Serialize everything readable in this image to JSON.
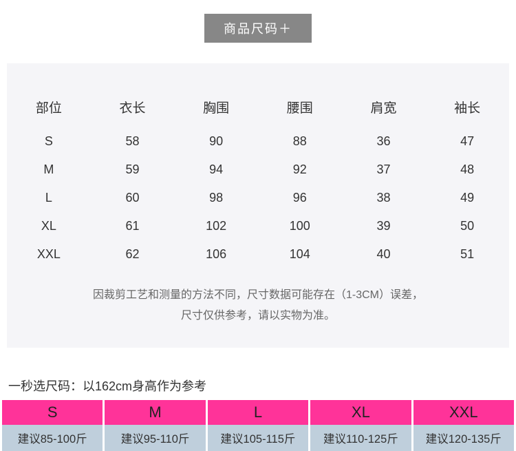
{
  "tab": {
    "label": "商品尺码＋",
    "bg_color": "#878787",
    "text_color": "#ffffff"
  },
  "size_table": {
    "background_color": "#f5f5f8",
    "text_color": "#333333",
    "columns": [
      "部位",
      "衣长",
      "胸围",
      "腰围",
      "肩宽",
      "袖长"
    ],
    "rows": [
      [
        "S",
        "58",
        "90",
        "88",
        "36",
        "47"
      ],
      [
        "M",
        "59",
        "94",
        "92",
        "37",
        "48"
      ],
      [
        "L",
        "60",
        "98",
        "96",
        "38",
        "49"
      ],
      [
        "XL",
        "61",
        "102",
        "100",
        "39",
        "50"
      ],
      [
        "XXL",
        "62",
        "106",
        "104",
        "40",
        "51"
      ]
    ]
  },
  "disclaimer": {
    "line1": "因裁剪工艺和测量的方法不同，尺寸数据可能存在（1-3CM）误差，",
    "line2": "尺寸仅供参考，请以实物为准。"
  },
  "quick_pick": {
    "title": "一秒选尺码：以162cm身高作为参考",
    "header_bg": "#ff3399",
    "body_bg": "#bfcfdc",
    "sizes": [
      "S",
      "M",
      "L",
      "XL",
      "XXL"
    ],
    "advice": [
      "建议85-100斤",
      "建议95-110斤",
      "建议105-115斤",
      "建议110-125斤",
      "建议120-135斤"
    ]
  }
}
